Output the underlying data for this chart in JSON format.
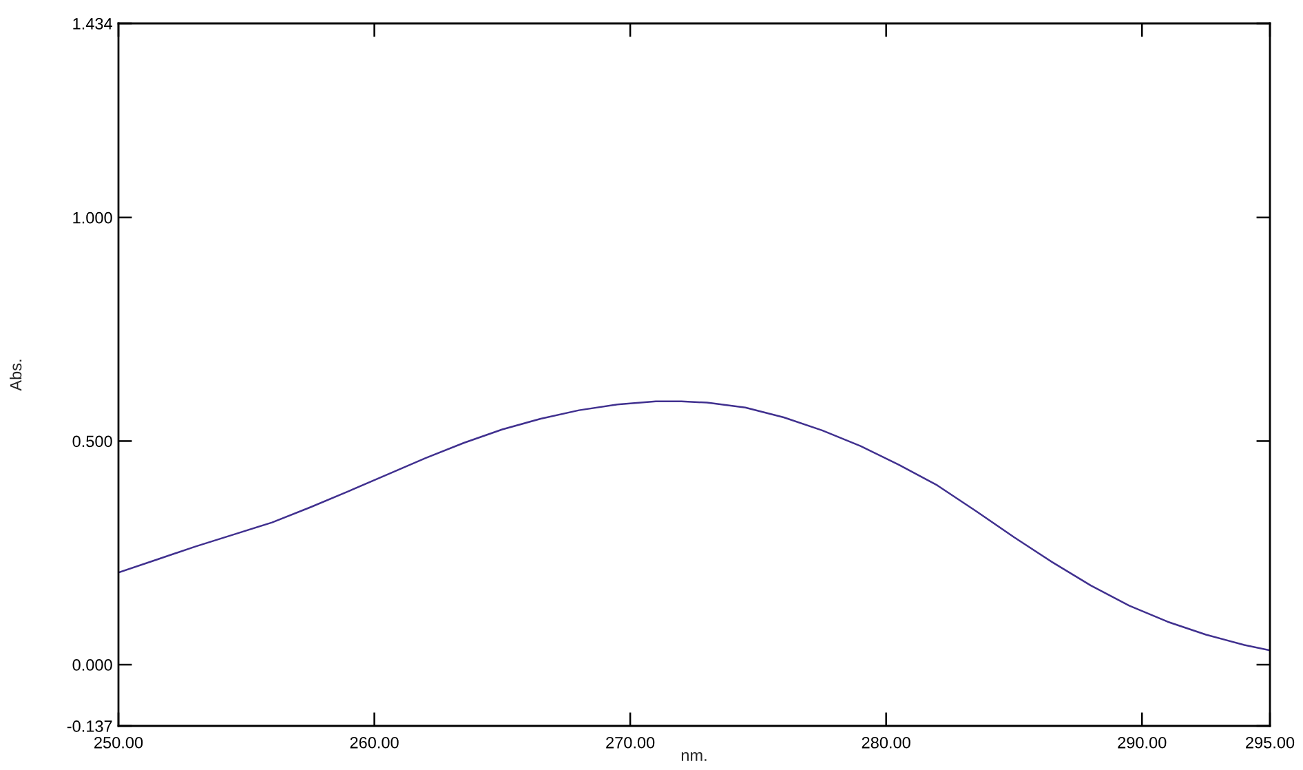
{
  "chart_data": {
    "type": "line",
    "xlabel": "nm.",
    "ylabel": "Abs.",
    "x": [
      250.0,
      251.5,
      253.0,
      254.5,
      256.0,
      257.5,
      259.0,
      260.5,
      262.0,
      263.5,
      265.0,
      266.5,
      268.0,
      269.5,
      271.0,
      272.0,
      273.0,
      274.5,
      276.0,
      277.5,
      279.0,
      280.5,
      282.0,
      283.5,
      285.0,
      286.5,
      288.0,
      289.5,
      291.0,
      292.5,
      294.0,
      295.0
    ],
    "series": [
      {
        "color": "#40308f",
        "values": [
          0.206,
          0.235,
          0.264,
          0.291,
          0.318,
          0.352,
          0.388,
          0.425,
          0.462,
          0.496,
          0.526,
          0.55,
          0.569,
          0.582,
          0.589,
          0.589,
          0.586,
          0.575,
          0.553,
          0.524,
          0.489,
          0.447,
          0.401,
          0.344,
          0.285,
          0.229,
          0.177,
          0.132,
          0.096,
          0.067,
          0.044,
          0.032
        ]
      }
    ],
    "xlim": [
      250,
      295
    ],
    "ylim": [
      -0.137,
      1.434
    ],
    "xticks": [
      {
        "value": 250,
        "label": "250.00"
      },
      {
        "value": 260,
        "label": "260.00"
      },
      {
        "value": 270,
        "label": "270.00"
      },
      {
        "value": 280,
        "label": "280.00"
      },
      {
        "value": 290,
        "label": "290.00"
      },
      {
        "value": 295,
        "label": "295.00"
      }
    ],
    "yticks": [
      {
        "value": -0.137,
        "label": "-0.137"
      },
      {
        "value": 0,
        "label": "0.000"
      },
      {
        "value": 0.5,
        "label": "0.500"
      },
      {
        "value": 1.0,
        "label": "1.000"
      },
      {
        "value": 1.434,
        "label": "1.434"
      }
    ],
    "line_style": "solid"
  }
}
